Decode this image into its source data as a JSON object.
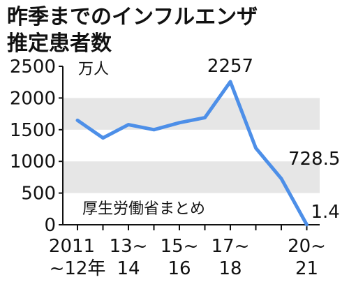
{
  "chart_data": {
    "type": "line",
    "title_lines": [
      "昨季までのインフルエンザ",
      "推定患者数"
    ],
    "unit": "万人",
    "note": "厚生労働省まとめ",
    "ylim": [
      0,
      2500
    ],
    "yticks": [
      0,
      500,
      1000,
      1500,
      2000,
      2500
    ],
    "x_tick_labels": [
      {
        "top": "2011",
        "bottom": "~12年",
        "season": 0
      },
      {
        "top": "13~",
        "bottom": "14",
        "season": 2
      },
      {
        "top": "15~",
        "bottom": "16",
        "season": 4
      },
      {
        "top": "17~",
        "bottom": "18",
        "season": 6
      },
      {
        "top": "20~",
        "bottom": "21",
        "season": 9
      }
    ],
    "series": [
      {
        "color": "#4d8fe8",
        "x": [
          0,
          1,
          2,
          3,
          4,
          5,
          6,
          7,
          8,
          9
        ],
        "values": [
          1648,
          1370,
          1580,
          1500,
          1610,
          1690,
          2257,
          1210,
          728.5,
          1.4
        ]
      }
    ],
    "data_labels": [
      {
        "index": 6,
        "text": "2257"
      },
      {
        "index": 8,
        "text": "728.5"
      },
      {
        "index": 9,
        "text": "1.4"
      }
    ],
    "grid": "alternating horizontal bands",
    "band_color": "#e6e6e6"
  }
}
